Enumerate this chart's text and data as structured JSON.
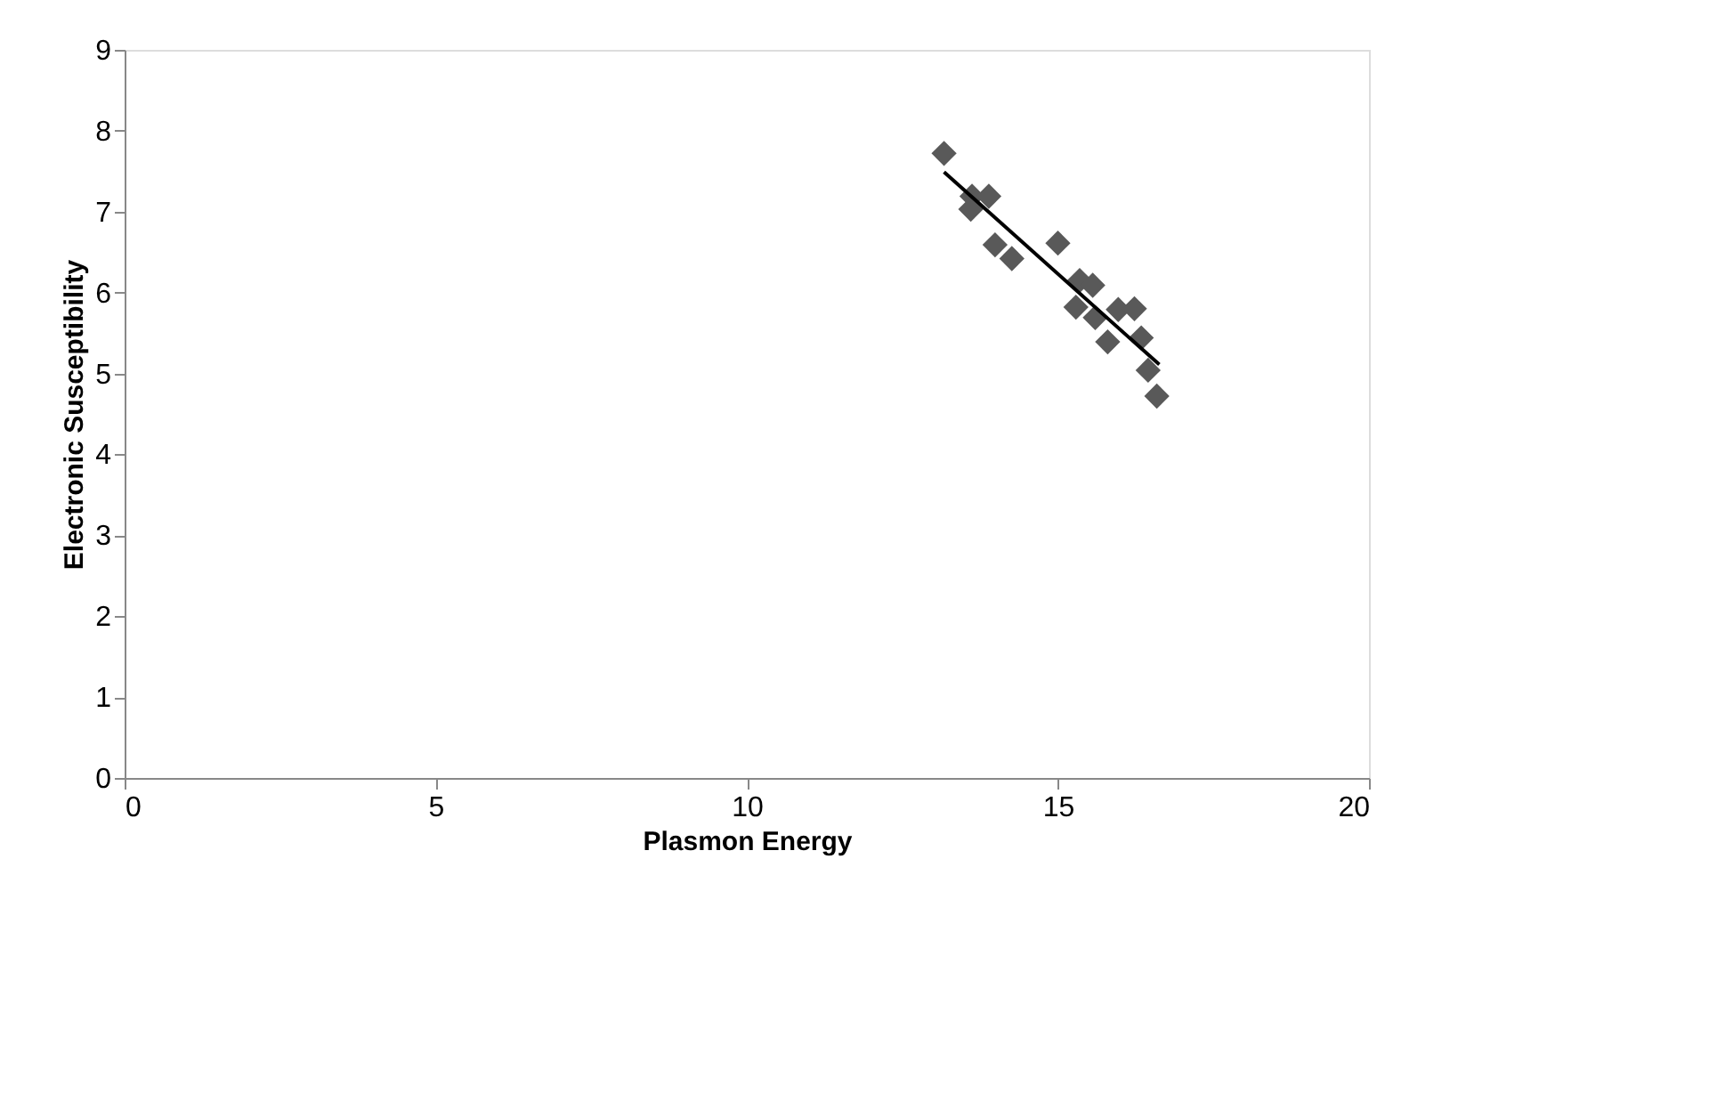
{
  "chart_data": {
    "type": "scatter",
    "xlabel": "Plasmon Energy",
    "ylabel": "Electronic Susceptibility",
    "xlim": [
      0,
      20
    ],
    "xticks": [
      0,
      5,
      10,
      15,
      20
    ],
    "ylim": [
      0,
      9
    ],
    "yticks": [
      0,
      1,
      2,
      3,
      4,
      5,
      6,
      7,
      8,
      9
    ],
    "grid": false,
    "marker": "diamond",
    "series": [
      {
        "color": "#595959",
        "x": [
          13.17,
          13.62,
          13.89,
          13.6,
          13.99,
          14.26,
          15.0,
          15.35,
          15.56,
          15.29,
          15.6,
          15.97,
          16.23,
          15.8,
          16.34,
          16.45,
          16.59
        ],
        "values": [
          7.72,
          7.19,
          7.19,
          7.03,
          6.59,
          6.42,
          6.61,
          6.15,
          6.09,
          5.82,
          5.69,
          5.79,
          5.8,
          5.39,
          5.44,
          5.04,
          4.72
        ]
      },
      {
        "type": "line",
        "color": "#000000",
        "line_style": "solid",
        "marker": "none",
        "x": [
          13.17,
          16.63
        ],
        "values": [
          7.49,
          5.11
        ]
      }
    ]
  }
}
